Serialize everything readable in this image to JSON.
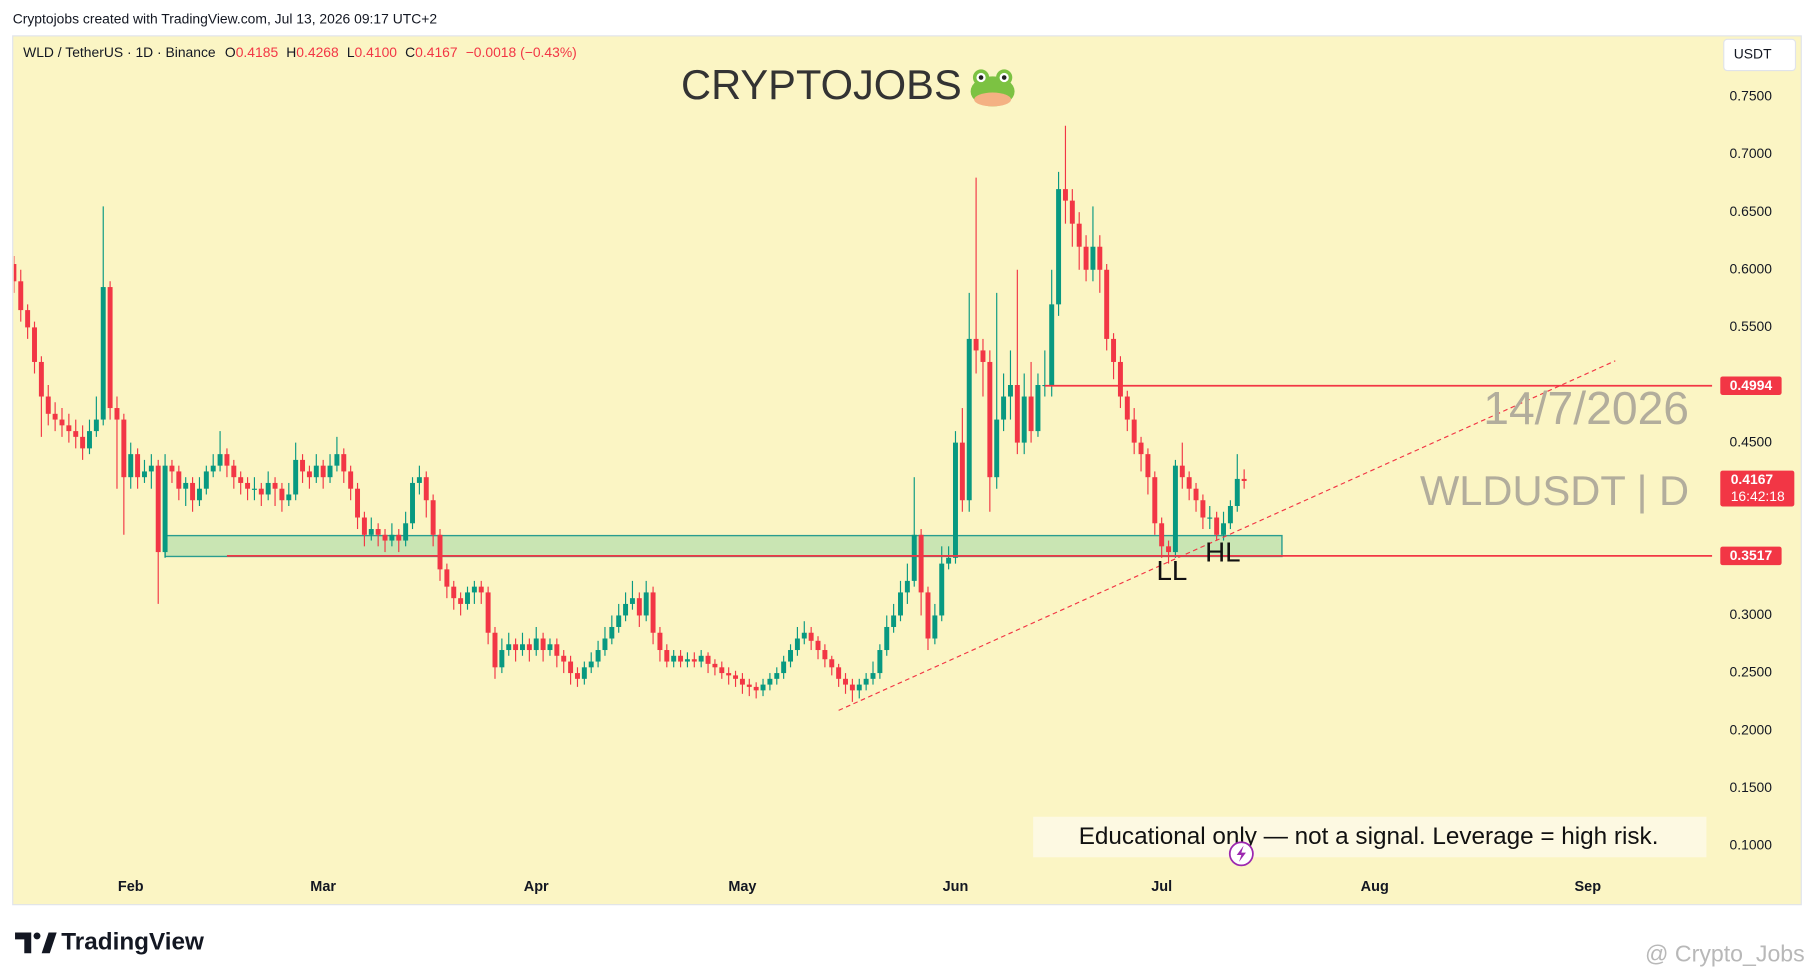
{
  "attribution": "Cryptojobs created with TradingView.com, Jul 13, 2026 09:17 UTC+2",
  "brand": "TradingView",
  "watermark": "@ Crypto_Jobs",
  "chart_data": {
    "type": "candlestick",
    "symbol": "WLD / TetherUS · 1D · Binance",
    "ohlc_header": [
      {
        "label": "O",
        "value": "0.4185"
      },
      {
        "label": "H",
        "value": "0.4268"
      },
      {
        "label": "L",
        "value": "0.4100"
      },
      {
        "label": "C",
        "value": "0.4167"
      }
    ],
    "change": "−0.0018 (−0.43%)",
    "currency": "USDT",
    "countdown": "16:42:18",
    "up_color": "#089981",
    "down_color": "#f23645",
    "grid": false,
    "xlim": [
      0,
      247.1
    ],
    "xticks": [
      {
        "value": 17,
        "label": "Feb"
      },
      {
        "value": 45,
        "label": "Mar"
      },
      {
        "value": 76,
        "label": "Apr"
      },
      {
        "value": 106,
        "label": "May"
      },
      {
        "value": 137,
        "label": "Jun"
      },
      {
        "value": 167,
        "label": "Jul"
      },
      {
        "value": 198,
        "label": "Aug"
      },
      {
        "value": 229,
        "label": "Sep"
      }
    ],
    "ylim": [
      0.05,
      0.803
    ],
    "yticks": [
      {
        "value": 0.1,
        "label": "0.1000"
      },
      {
        "value": 0.15,
        "label": "0.1500"
      },
      {
        "value": 0.2,
        "label": "0.2000"
      },
      {
        "value": 0.25,
        "label": "0.2500"
      },
      {
        "value": 0.3,
        "label": "0.3000"
      },
      {
        "value": 0.35,
        "label": "0.3500"
      },
      {
        "value": 0.4,
        "label": "0.4000"
      },
      {
        "value": 0.45,
        "label": "0.4500"
      },
      {
        "value": 0.5,
        "label": "0.5000"
      },
      {
        "value": 0.55,
        "label": "0.5500"
      },
      {
        "value": 0.6,
        "label": "0.6000"
      },
      {
        "value": 0.65,
        "label": "0.6500"
      },
      {
        "value": 0.7,
        "label": "0.7000"
      },
      {
        "value": 0.75,
        "label": "0.7500"
      }
    ],
    "open": [
      0.605,
      0.59,
      0.565,
      0.55,
      0.52,
      0.49,
      0.475,
      0.47,
      0.465,
      0.46,
      0.455,
      0.445,
      0.46,
      0.47,
      0.585,
      0.48,
      0.47,
      0.42,
      0.44,
      0.42,
      0.425,
      0.43,
      0.355,
      0.43,
      0.425,
      0.41,
      0.415,
      0.4,
      0.41,
      0.425,
      0.43,
      0.44,
      0.43,
      0.42,
      0.415,
      0.41,
      0.41,
      0.405,
      0.415,
      0.41,
      0.4,
      0.405,
      0.435,
      0.425,
      0.42,
      0.43,
      0.42,
      0.43,
      0.44,
      0.425,
      0.41,
      0.385,
      0.37,
      0.375,
      0.37,
      0.365,
      0.37,
      0.365,
      0.38,
      0.415,
      0.42,
      0.4,
      0.37,
      0.34,
      0.325,
      0.315,
      0.31,
      0.32,
      0.325,
      0.32,
      0.285,
      0.255,
      0.27,
      0.275,
      0.27,
      0.275,
      0.27,
      0.28,
      0.27,
      0.275,
      0.265,
      0.26,
      0.25,
      0.245,
      0.255,
      0.26,
      0.27,
      0.28,
      0.29,
      0.3,
      0.31,
      0.315,
      0.3,
      0.32,
      0.285,
      0.27,
      0.26,
      0.265,
      0.26,
      0.262,
      0.26,
      0.265,
      0.258,
      0.255,
      0.25,
      0.248,
      0.245,
      0.24,
      0.238,
      0.235,
      0.24,
      0.245,
      0.25,
      0.26,
      0.27,
      0.28,
      0.285,
      0.278,
      0.27,
      0.262,
      0.255,
      0.245,
      0.24,
      0.235,
      0.24,
      0.245,
      0.25,
      0.27,
      0.29,
      0.3,
      0.32,
      0.33,
      0.37,
      0.32,
      0.28,
      0.3,
      0.345,
      0.35,
      0.45,
      0.4,
      0.54,
      0.53,
      0.52,
      0.42,
      0.47,
      0.49,
      0.5,
      0.45,
      0.49,
      0.46,
      0.5,
      0.5,
      0.57,
      0.67,
      0.66,
      0.64,
      0.62,
      0.6,
      0.62,
      0.6,
      0.54,
      0.52,
      0.49,
      0.47,
      0.45,
      0.44,
      0.42,
      0.38,
      0.36,
      0.355,
      0.43,
      0.42,
      0.41,
      0.4,
      0.385,
      0.385,
      0.37,
      0.38,
      0.395,
      0.4185
    ],
    "high": [
      0.612,
      0.6,
      0.57,
      0.555,
      0.525,
      0.5,
      0.485,
      0.48,
      0.475,
      0.47,
      0.465,
      0.47,
      0.49,
      0.655,
      0.59,
      0.49,
      0.475,
      0.45,
      0.445,
      0.435,
      0.44,
      0.435,
      0.44,
      0.435,
      0.43,
      0.42,
      0.42,
      0.42,
      0.43,
      0.44,
      0.46,
      0.445,
      0.435,
      0.425,
      0.42,
      0.42,
      0.415,
      0.425,
      0.42,
      0.415,
      0.415,
      0.45,
      0.44,
      0.43,
      0.44,
      0.435,
      0.44,
      0.455,
      0.445,
      0.43,
      0.415,
      0.39,
      0.385,
      0.38,
      0.375,
      0.38,
      0.375,
      0.39,
      0.42,
      0.43,
      0.425,
      0.405,
      0.375,
      0.345,
      0.33,
      0.32,
      0.325,
      0.33,
      0.33,
      0.325,
      0.29,
      0.28,
      0.285,
      0.28,
      0.285,
      0.28,
      0.29,
      0.285,
      0.28,
      0.28,
      0.27,
      0.265,
      0.255,
      0.26,
      0.268,
      0.278,
      0.29,
      0.3,
      0.31,
      0.32,
      0.33,
      0.32,
      0.33,
      0.325,
      0.29,
      0.275,
      0.27,
      0.27,
      0.268,
      0.268,
      0.27,
      0.268,
      0.262,
      0.26,
      0.255,
      0.252,
      0.25,
      0.245,
      0.242,
      0.245,
      0.25,
      0.255,
      0.265,
      0.275,
      0.29,
      0.295,
      0.29,
      0.282,
      0.275,
      0.265,
      0.258,
      0.25,
      0.245,
      0.245,
      0.25,
      0.26,
      0.275,
      0.3,
      0.31,
      0.33,
      0.345,
      0.42,
      0.375,
      0.325,
      0.31,
      0.36,
      0.36,
      0.46,
      0.48,
      0.58,
      0.68,
      0.54,
      0.53,
      0.58,
      0.51,
      0.53,
      0.6,
      0.51,
      0.52,
      0.51,
      0.53,
      0.6,
      0.685,
      0.725,
      0.67,
      0.65,
      0.63,
      0.655,
      0.63,
      0.605,
      0.545,
      0.525,
      0.495,
      0.48,
      0.455,
      0.445,
      0.425,
      0.385,
      0.365,
      0.435,
      0.45,
      0.425,
      0.415,
      0.405,
      0.395,
      0.39,
      0.39,
      0.4,
      0.44,
      0.4268
    ],
    "low": [
      0.58,
      0.555,
      0.54,
      0.51,
      0.455,
      0.465,
      0.46,
      0.455,
      0.45,
      0.445,
      0.435,
      0.44,
      0.455,
      0.465,
      0.47,
      0.41,
      0.37,
      0.41,
      0.41,
      0.415,
      0.41,
      0.31,
      0.35,
      0.415,
      0.4,
      0.395,
      0.39,
      0.395,
      0.405,
      0.42,
      0.425,
      0.42,
      0.41,
      0.405,
      0.4,
      0.4,
      0.395,
      0.4,
      0.395,
      0.39,
      0.395,
      0.4,
      0.415,
      0.41,
      0.415,
      0.41,
      0.415,
      0.425,
      0.415,
      0.4,
      0.375,
      0.36,
      0.365,
      0.36,
      0.355,
      0.36,
      0.355,
      0.36,
      0.375,
      0.405,
      0.385,
      0.36,
      0.33,
      0.315,
      0.305,
      0.3,
      0.305,
      0.31,
      0.31,
      0.275,
      0.245,
      0.25,
      0.265,
      0.26,
      0.265,
      0.26,
      0.265,
      0.26,
      0.265,
      0.255,
      0.25,
      0.24,
      0.238,
      0.24,
      0.25,
      0.255,
      0.265,
      0.275,
      0.285,
      0.295,
      0.305,
      0.29,
      0.295,
      0.275,
      0.26,
      0.255,
      0.255,
      0.255,
      0.255,
      0.255,
      0.255,
      0.25,
      0.248,
      0.245,
      0.24,
      0.238,
      0.232,
      0.23,
      0.228,
      0.23,
      0.235,
      0.24,
      0.245,
      0.255,
      0.265,
      0.275,
      0.27,
      0.262,
      0.255,
      0.248,
      0.238,
      0.232,
      0.225,
      0.228,
      0.235,
      0.24,
      0.245,
      0.265,
      0.285,
      0.295,
      0.31,
      0.325,
      0.3,
      0.27,
      0.275,
      0.295,
      0.34,
      0.345,
      0.39,
      0.39,
      0.51,
      0.49,
      0.39,
      0.41,
      0.46,
      0.47,
      0.44,
      0.44,
      0.45,
      0.455,
      0.49,
      0.49,
      0.56,
      0.64,
      0.62,
      0.6,
      0.59,
      0.59,
      0.58,
      0.53,
      0.505,
      0.48,
      0.46,
      0.44,
      0.425,
      0.405,
      0.37,
      0.35,
      0.345,
      0.35,
      0.41,
      0.4,
      0.39,
      0.375,
      0.375,
      0.365,
      0.365,
      0.375,
      0.39,
      0.41
    ],
    "close": [
      0.59,
      0.565,
      0.55,
      0.52,
      0.49,
      0.475,
      0.47,
      0.465,
      0.46,
      0.455,
      0.445,
      0.46,
      0.47,
      0.585,
      0.48,
      0.47,
      0.42,
      0.44,
      0.42,
      0.425,
      0.43,
      0.355,
      0.43,
      0.425,
      0.41,
      0.415,
      0.4,
      0.41,
      0.425,
      0.43,
      0.44,
      0.43,
      0.42,
      0.415,
      0.41,
      0.41,
      0.405,
      0.415,
      0.41,
      0.4,
      0.405,
      0.435,
      0.425,
      0.42,
      0.43,
      0.42,
      0.43,
      0.44,
      0.425,
      0.41,
      0.385,
      0.37,
      0.375,
      0.37,
      0.365,
      0.37,
      0.365,
      0.38,
      0.415,
      0.42,
      0.4,
      0.37,
      0.34,
      0.325,
      0.315,
      0.31,
      0.32,
      0.325,
      0.32,
      0.285,
      0.255,
      0.27,
      0.275,
      0.27,
      0.275,
      0.27,
      0.28,
      0.27,
      0.275,
      0.265,
      0.26,
      0.25,
      0.245,
      0.255,
      0.26,
      0.27,
      0.28,
      0.29,
      0.3,
      0.31,
      0.315,
      0.3,
      0.32,
      0.285,
      0.27,
      0.26,
      0.265,
      0.26,
      0.262,
      0.26,
      0.265,
      0.258,
      0.255,
      0.25,
      0.248,
      0.245,
      0.24,
      0.238,
      0.235,
      0.24,
      0.245,
      0.25,
      0.26,
      0.27,
      0.28,
      0.285,
      0.278,
      0.27,
      0.262,
      0.255,
      0.245,
      0.24,
      0.235,
      0.24,
      0.245,
      0.25,
      0.27,
      0.29,
      0.3,
      0.32,
      0.33,
      0.37,
      0.32,
      0.28,
      0.3,
      0.345,
      0.35,
      0.45,
      0.4,
      0.54,
      0.53,
      0.52,
      0.42,
      0.47,
      0.49,
      0.5,
      0.45,
      0.49,
      0.46,
      0.5,
      0.5,
      0.57,
      0.67,
      0.66,
      0.64,
      0.62,
      0.6,
      0.62,
      0.6,
      0.54,
      0.52,
      0.49,
      0.47,
      0.45,
      0.44,
      0.42,
      0.38,
      0.36,
      0.355,
      0.43,
      0.42,
      0.41,
      0.4,
      0.385,
      0.385,
      0.37,
      0.38,
      0.395,
      0.4185,
      0.4167
    ],
    "levels": [
      {
        "value": 0.4994,
        "from": 150,
        "color": "#f23645"
      },
      {
        "value": 0.3517,
        "from": 31,
        "color": "#f23645"
      }
    ],
    "zone": {
      "x": [
        22,
        184.5
      ],
      "y": [
        0.3512,
        0.3693
      ]
    },
    "trendline": {
      "x": [
        120,
        233
      ],
      "y": [
        0.2176,
        0.521
      ]
    },
    "annotations": {
      "brand": "CRYPTOJOBS",
      "date": "14/7/2026",
      "ticker": "WLDUSDT | D",
      "ll": "LL",
      "hl": "HL",
      "disclaimer": "Educational only — not a signal. Leverage  = high risk."
    }
  }
}
